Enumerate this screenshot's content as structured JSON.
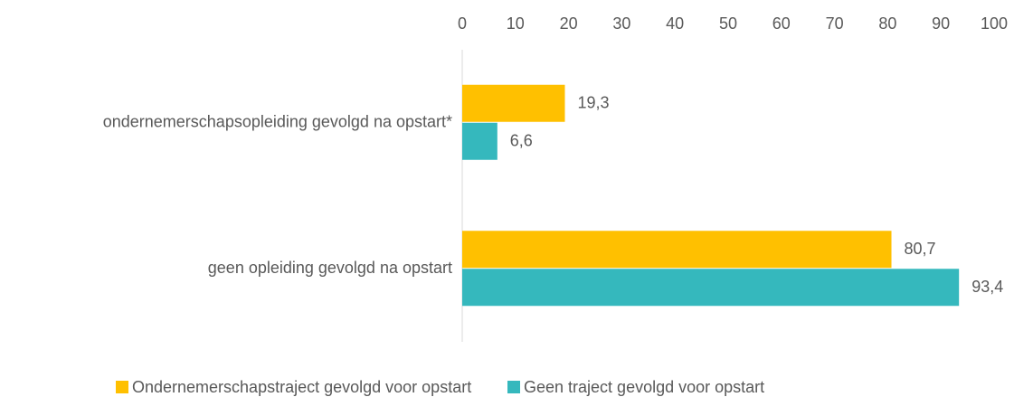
{
  "chart_data": {
    "type": "barh",
    "categories": [
      "ondernemerschapsopleiding gevolgd na opstart*",
      "geen opleiding gevolgd na opstart"
    ],
    "series": [
      {
        "name": "Ondernemerschapstraject gevolgd voor opstart",
        "color": "#FFC000",
        "values": [
          19.3,
          80.7
        ],
        "value_labels": [
          "19,3",
          "80,7"
        ]
      },
      {
        "name": "Geen traject gevolgd voor opstart",
        "color": "#35B8BD",
        "values": [
          6.6,
          93.4
        ],
        "value_labels": [
          "6,6",
          "93,4"
        ]
      }
    ],
    "xlim": [
      0,
      100
    ],
    "xticks": [
      0,
      10,
      20,
      30,
      40,
      50,
      60,
      70,
      80,
      90,
      100
    ],
    "legend": "bottom"
  }
}
